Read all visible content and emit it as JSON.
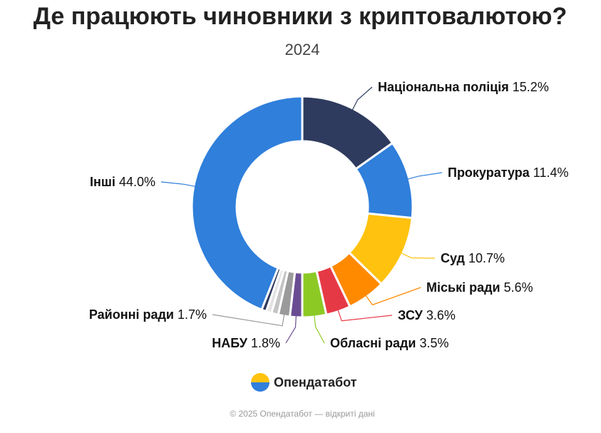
{
  "chart_data": {
    "type": "donut",
    "title": "Де працюють чиновники з криптовалютою?",
    "subtitle": "2024",
    "categories": [
      "Національна поліція",
      "Прокуратура",
      "Суд",
      "Міські ради",
      "ЗСУ",
      "Обласні ради",
      "НАБУ",
      "Районні ради",
      null,
      null,
      null,
      "Інші"
    ],
    "values": [
      15.2,
      11.4,
      10.7,
      5.6,
      3.6,
      3.5,
      1.8,
      1.7,
      1.0,
      0.8,
      0.7,
      44.0
    ],
    "value_labels": [
      "15.2%",
      "11.4%",
      "10.7%",
      "5.6%",
      "3.6%",
      "3.5%",
      "1.8%",
      "1.7%",
      null,
      null,
      null,
      "44.0%"
    ],
    "colors": [
      "#2e3b5e",
      "#2f7fdb",
      "#ffc20e",
      "#ff8a00",
      "#e63946",
      "#8cc925",
      "#6a4c93",
      "#9a9a9a",
      "#c4c4c4",
      "#e2e2e2",
      "#2e3b5e",
      "#2f7fdb"
    ]
  },
  "brand": "Опендатабот",
  "footer": "© 2025 Опендатабот — відкриті дані"
}
